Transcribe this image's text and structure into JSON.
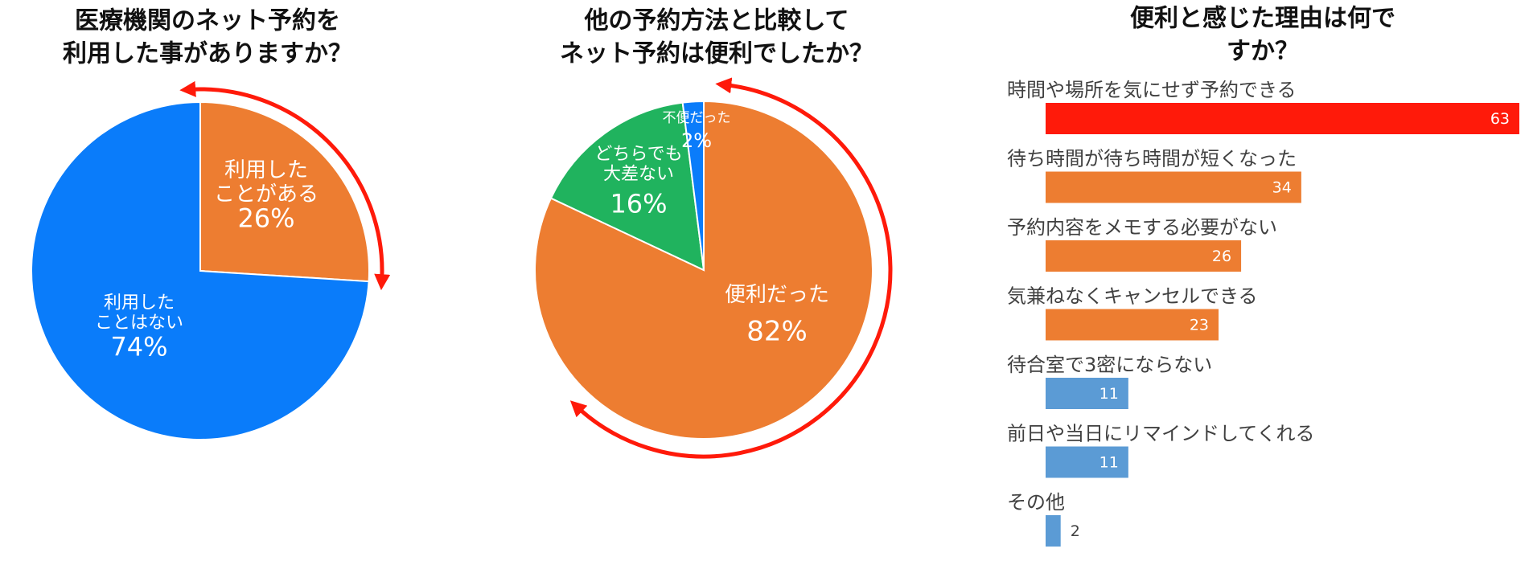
{
  "chart_data": [
    {
      "type": "pie",
      "title": "医療機関のネット予約を\n利用した事がありますか？",
      "categories": [
        "利用した\nことがある",
        "利用した\nことはない"
      ],
      "values": [
        26,
        74
      ],
      "value_labels": [
        "26%",
        "74%"
      ],
      "colors": [
        "#ed7d31",
        "#0a7cfa"
      ]
    },
    {
      "type": "pie",
      "title": "他の予約方法と比較して\nネット予約は便利でしたか？",
      "categories": [
        "便利だった",
        "どちらでも\n大差ない",
        "不便だった"
      ],
      "values": [
        82,
        16,
        2
      ],
      "value_labels": [
        "82%",
        "16%",
        "2%"
      ],
      "colors": [
        "#ed7d31",
        "#20b35e",
        "#0a7cfa"
      ]
    },
    {
      "type": "hbar",
      "title": "便利と感じた理由は何ですか？",
      "categories": [
        "時間や場所を気にせず予約できる",
        "待ち時間が待ち時間が短くなった",
        "予約内容をメモする必要がない",
        "気兼ねなくキャンセルできる",
        "待合室で3密にならない",
        "前日や当日にリマインドしてくれる",
        "その他"
      ],
      "values": [
        63,
        34,
        26,
        23,
        11,
        11,
        2
      ],
      "colors": [
        "#ff1a0a",
        "#ed7d31",
        "#ed7d31",
        "#ed7d31",
        "#5b9bd5",
        "#5b9bd5",
        "#5b9bd5"
      ]
    }
  ]
}
